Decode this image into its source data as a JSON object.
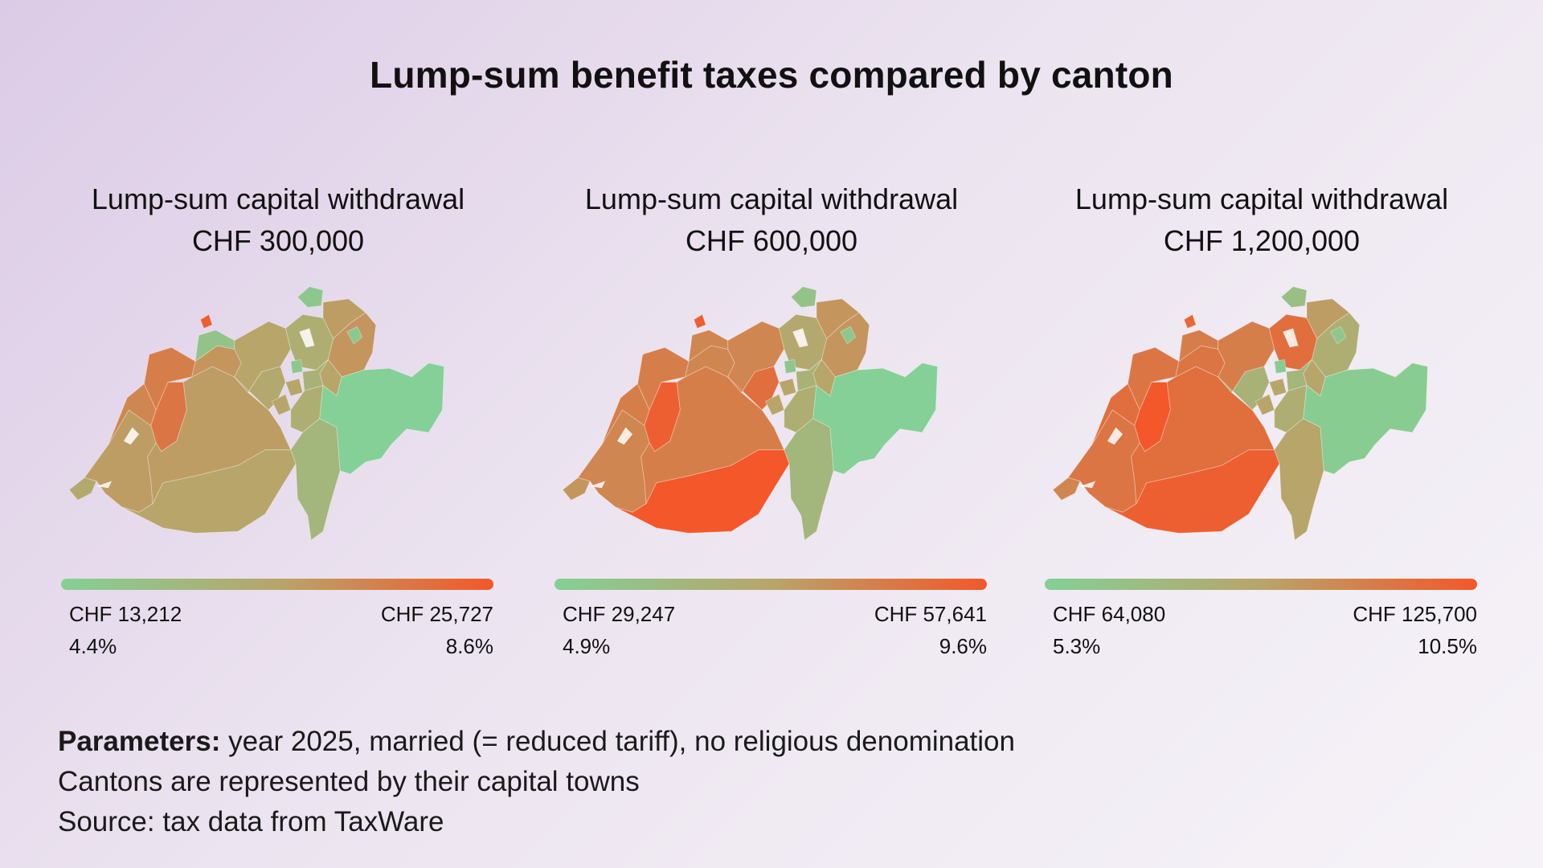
{
  "title": "Lump-sum benefit taxes compared by canton",
  "legend_colors": {
    "low": "#84d096",
    "mid": "#b8a56a",
    "high": "#f3572a"
  },
  "panels": [
    {
      "heading_line1": "Lump-sum capital withdrawal",
      "heading_line2": "CHF 300,000",
      "min_label": "CHF 13,212",
      "max_label": "CHF 25,727",
      "min_rate": "4.4%",
      "max_rate": "8.6%",
      "regions": {
        "ge": 0.45,
        "vd": 0.55,
        "vs": 0.5,
        "fr": 0.8,
        "ne": 0.7,
        "ju": 0.75,
        "be": 0.55,
        "so": 0.6,
        "bs": 0.95,
        "bl": 0.15,
        "ag": 0.5,
        "lu": 0.45,
        "zh": 0.4,
        "sh": 0.1,
        "tg": 0.55,
        "sg": 0.6,
        "ar": 0.1,
        "gl": 0.5,
        "zg": 0.1,
        "sz": 0.35,
        "ur": 0.4,
        "ow": 0.5,
        "nw": 0.5,
        "ti": 0.3,
        "gr": 0.0
      }
    },
    {
      "heading_line1": "Lump-sum capital withdrawal",
      "heading_line2": "CHF 600,000",
      "min_label": "CHF 29,247",
      "max_label": "CHF 57,641",
      "min_rate": "4.9%",
      "max_rate": "9.6%",
      "regions": {
        "ge": 0.6,
        "vd": 0.7,
        "vs": 1.0,
        "fr": 0.95,
        "ne": 0.75,
        "ju": 0.75,
        "be": 0.75,
        "so": 0.7,
        "bs": 0.95,
        "bl": 0.7,
        "ag": 0.7,
        "lu": 0.85,
        "zh": 0.45,
        "sh": 0.15,
        "tg": 0.6,
        "sg": 0.6,
        "ar": 0.1,
        "gl": 0.5,
        "zg": 0.1,
        "sz": 0.35,
        "ur": 0.4,
        "ow": 0.5,
        "nw": 0.5,
        "ti": 0.3,
        "gr": 0.0
      }
    },
    {
      "heading_line1": "Lump-sum capital withdrawal",
      "heading_line2": "CHF 1,200,000",
      "min_label": "CHF 64,080",
      "max_label": "CHF 125,700",
      "min_rate": "5.3%",
      "max_rate": "10.5%",
      "regions": {
        "ge": 0.7,
        "vd": 0.8,
        "vs": 0.95,
        "fr": 1.0,
        "ne": 0.85,
        "ju": 0.8,
        "be": 0.85,
        "so": 0.8,
        "bs": 0.9,
        "bl": 0.75,
        "ag": 0.75,
        "lu": 0.35,
        "zh": 0.85,
        "sh": 0.2,
        "tg": 0.55,
        "sg": 0.4,
        "ar": 0.1,
        "gl": 0.5,
        "zg": 0.05,
        "sz": 0.3,
        "ur": 0.4,
        "ow": 0.5,
        "nw": 0.5,
        "ti": 0.5,
        "gr": 0.05
      }
    }
  ],
  "footnotes": {
    "parameters_label": "Parameters:",
    "parameters_text": " year 2025, married (= reduced tariff), no religious denomination",
    "line2": "Cantons are represented by their capital towns",
    "line3": "Source: tax data from TaxWare"
  }
}
